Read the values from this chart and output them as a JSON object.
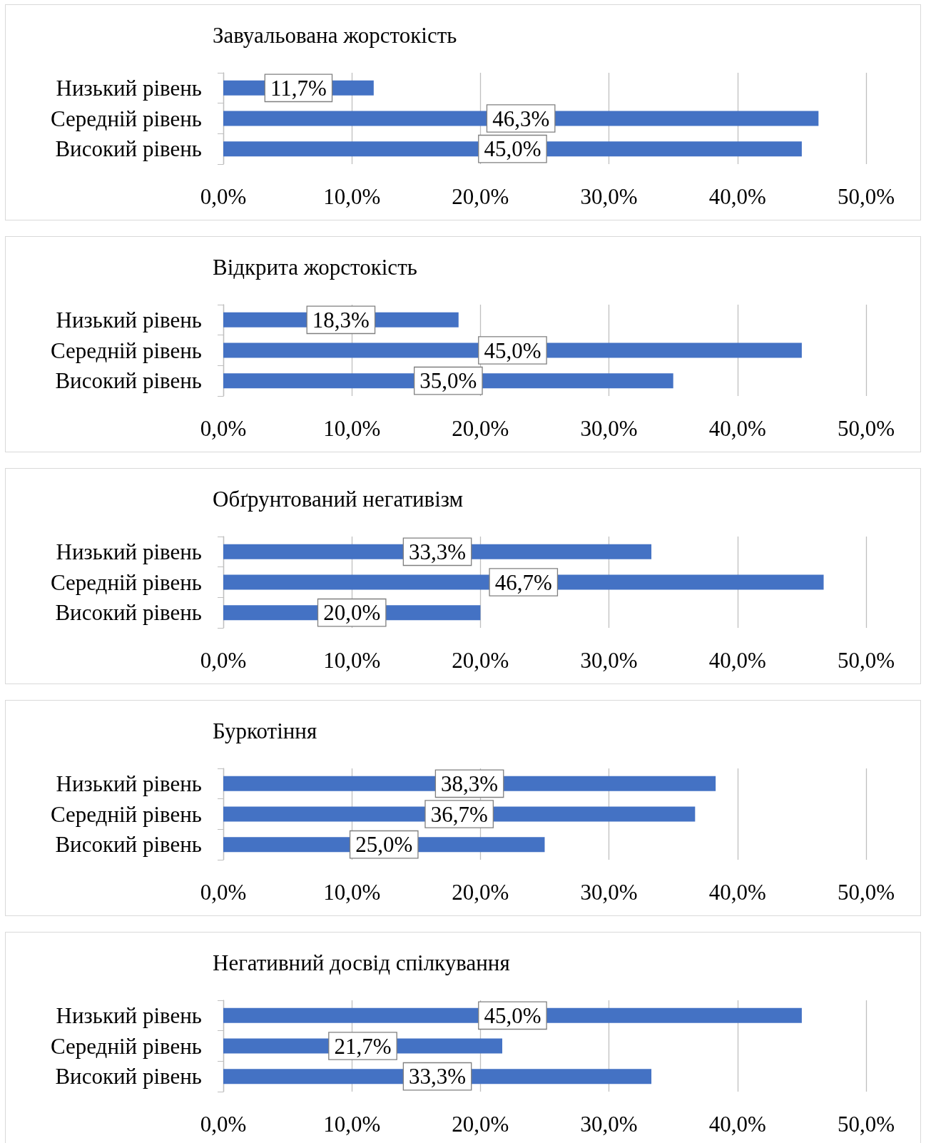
{
  "chart_data": [
    {
      "type": "bar",
      "orientation": "horizontal",
      "title": "Завуальована жорстокість",
      "categories": [
        "Низький рівень",
        "Середній рівень",
        "Високий рівень"
      ],
      "values": [
        11.7,
        46.3,
        45.0
      ],
      "value_labels": [
        "11,7%",
        "46,3%",
        "45,0%"
      ],
      "color": "#4472c4",
      "xlim": [
        0,
        50
      ],
      "xticks": [
        {
          "value": 0,
          "label": "0,0%"
        },
        {
          "value": 10,
          "label": "10,0%"
        },
        {
          "value": 20,
          "label": "20,0%"
        },
        {
          "value": 30,
          "label": "30,0%"
        },
        {
          "value": 40,
          "label": "40,0%"
        },
        {
          "value": 50,
          "label": "50,0%"
        }
      ],
      "grid": "x"
    },
    {
      "type": "bar",
      "orientation": "horizontal",
      "title": "Відкрита жорстокість",
      "categories": [
        "Низький рівень",
        "Середній рівень",
        "Високий рівень"
      ],
      "values": [
        18.3,
        45.0,
        35.0
      ],
      "value_labels": [
        "18,3%",
        "45,0%",
        "35,0%"
      ],
      "color": "#4472c4",
      "xlim": [
        0,
        50
      ],
      "xticks": [
        {
          "value": 0,
          "label": "0,0%"
        },
        {
          "value": 10,
          "label": "10,0%"
        },
        {
          "value": 20,
          "label": "20,0%"
        },
        {
          "value": 30,
          "label": "30,0%"
        },
        {
          "value": 40,
          "label": "40,0%"
        },
        {
          "value": 50,
          "label": "50,0%"
        }
      ],
      "grid": "x"
    },
    {
      "type": "bar",
      "orientation": "horizontal",
      "title": "Обґрунтований негативізм",
      "categories": [
        "Низький рівень",
        "Середній рівень",
        "Високий рівень"
      ],
      "values": [
        33.3,
        46.7,
        20.0
      ],
      "value_labels": [
        "33,3%",
        "46,7%",
        "20,0%"
      ],
      "color": "#4472c4",
      "xlim": [
        0,
        50
      ],
      "xticks": [
        {
          "value": 0,
          "label": "0,0%"
        },
        {
          "value": 10,
          "label": "10,0%"
        },
        {
          "value": 20,
          "label": "20,0%"
        },
        {
          "value": 30,
          "label": "30,0%"
        },
        {
          "value": 40,
          "label": "40,0%"
        },
        {
          "value": 50,
          "label": "50,0%"
        }
      ],
      "grid": "x"
    },
    {
      "type": "bar",
      "orientation": "horizontal",
      "title": "Буркотіння",
      "categories": [
        "Низький рівень",
        "Середній рівень",
        "Високий рівень"
      ],
      "values": [
        38.3,
        36.7,
        25.0
      ],
      "value_labels": [
        "38,3%",
        "36,7%",
        "25,0%"
      ],
      "color": "#4472c4",
      "xlim": [
        0,
        50
      ],
      "xticks": [
        {
          "value": 0,
          "label": "0,0%"
        },
        {
          "value": 10,
          "label": "10,0%"
        },
        {
          "value": 20,
          "label": "20,0%"
        },
        {
          "value": 30,
          "label": "30,0%"
        },
        {
          "value": 40,
          "label": "40,0%"
        },
        {
          "value": 50,
          "label": "50,0%"
        }
      ],
      "grid": "x"
    },
    {
      "type": "bar",
      "orientation": "horizontal",
      "title": "Негативний досвід спілкування",
      "categories": [
        "Низький рівень",
        "Середній рівень",
        "Високий рівень"
      ],
      "values": [
        45.0,
        21.7,
        33.3
      ],
      "value_labels": [
        "45,0%",
        "21,7%",
        "33,3%"
      ],
      "color": "#4472c4",
      "xlim": [
        0,
        50
      ],
      "xticks": [
        {
          "value": 0,
          "label": "0,0%"
        },
        {
          "value": 10,
          "label": "10,0%"
        },
        {
          "value": 20,
          "label": "20,0%"
        },
        {
          "value": 30,
          "label": "30,0%"
        },
        {
          "value": 40,
          "label": "40,0%"
        },
        {
          "value": 50,
          "label": "50,0%"
        }
      ],
      "grid": "x"
    }
  ]
}
